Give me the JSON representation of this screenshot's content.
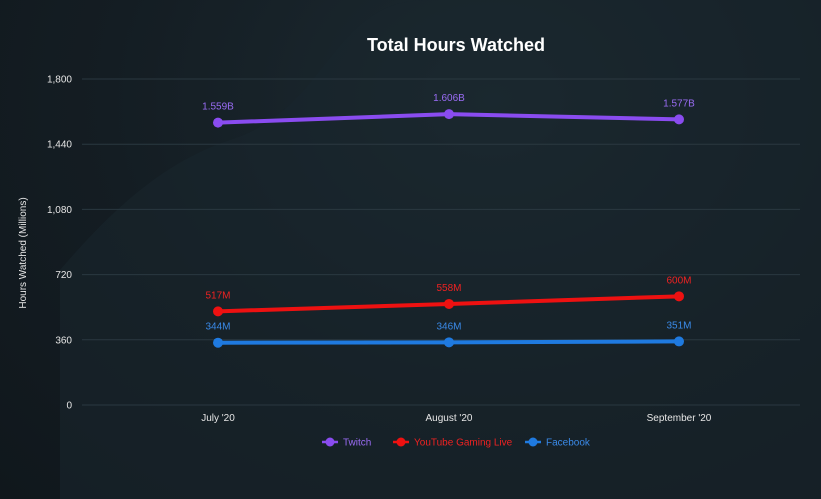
{
  "chart_data": {
    "type": "line",
    "title": "Total Hours Watched",
    "xlabel": "",
    "ylabel": "Hours Watched (Millions)",
    "categories": [
      "July '20",
      "August '20",
      "September '20"
    ],
    "yticks": [
      "0",
      "360",
      "720",
      "1,080",
      "1,440",
      "1,800"
    ],
    "ylim": [
      0,
      1800
    ],
    "grid": true,
    "legend_position": "bottom",
    "series": [
      {
        "name": "Twitch",
        "color": "#8a4cf0",
        "label_color": "#9a6cf5",
        "values": [
          1559,
          1606,
          1577
        ],
        "labels": [
          "1.559B",
          "1.606B",
          "1.577B"
        ]
      },
      {
        "name": "YouTube Gaming Live",
        "color": "#ee1111",
        "label_color": "#ee2222",
        "values": [
          517,
          558,
          600
        ],
        "labels": [
          "517M",
          "558M",
          "600M"
        ]
      },
      {
        "name": "Facebook",
        "color": "#1f7ae0",
        "label_color": "#3a8ae8",
        "values": [
          344,
          346,
          351
        ],
        "labels": [
          "344M",
          "346M",
          "351M"
        ]
      }
    ]
  }
}
